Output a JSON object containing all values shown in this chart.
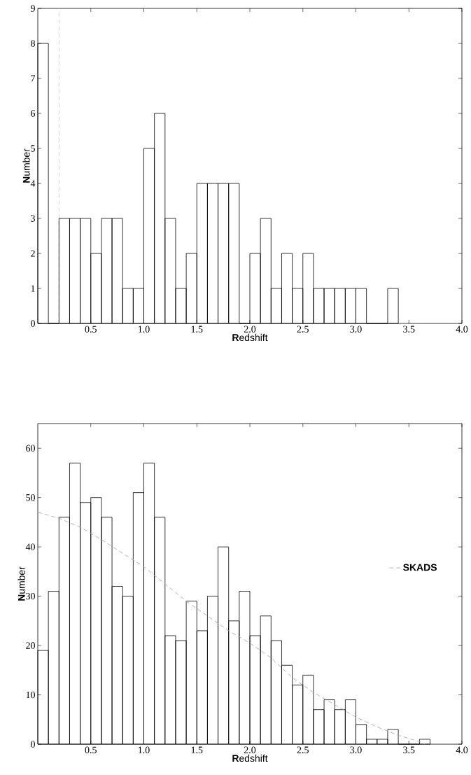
{
  "chart_data": [
    {
      "type": "histogram",
      "xlabel": "**R**edshift",
      "ylabel": "**N**umber",
      "color": "#000000",
      "bins": [
        0,
        0.1,
        0.2,
        0.3,
        0.4,
        0.5,
        0.6,
        0.7,
        0.8,
        0.9,
        1.0,
        1.1,
        1.2,
        1.3,
        1.4,
        1.5,
        1.6,
        1.7,
        1.8,
        1.9,
        2.0,
        2.1,
        2.2,
        2.3,
        2.4,
        2.5,
        2.6,
        2.7,
        2.8,
        2.9,
        3.0,
        3.1,
        3.2,
        3.3,
        3.4
      ],
      "values": [
        8,
        0,
        3,
        3,
        3,
        2,
        3,
        3,
        1,
        1,
        5,
        6,
        3,
        1,
        2,
        4,
        4,
        4,
        4,
        0,
        2,
        3,
        1,
        2,
        1,
        2,
        1,
        1,
        1,
        1,
        1,
        0,
        0,
        1
      ],
      "xlim": [
        0,
        4
      ],
      "ylim": [
        0,
        9
      ],
      "xticks": [
        {
          "value": 0.5,
          "label": "0.5"
        },
        {
          "value": 1.0,
          "label": "1.0"
        },
        {
          "value": 1.5,
          "label": "1.5"
        },
        {
          "value": 2.0,
          "label": "2.0"
        },
        {
          "value": 2.5,
          "label": "2.5"
        },
        {
          "value": 3.0,
          "label": "3.0"
        },
        {
          "value": 3.5,
          "label": "3.5"
        },
        {
          "value": 4.0,
          "label": "4.0"
        }
      ],
      "yticks": [
        0,
        1,
        2,
        3,
        4,
        5,
        6,
        7,
        8,
        9
      ],
      "ref_lines": [
        {
          "axis": "x",
          "value": 0.2,
          "color": "#c8c8c8",
          "line_style": "dashed"
        }
      ]
    },
    {
      "type": "histogram",
      "xlabel": "**R**edshift",
      "ylabel": "**N**umber",
      "legend": "right",
      "bins": [
        0,
        0.1,
        0.2,
        0.3,
        0.4,
        0.5,
        0.6,
        0.7,
        0.8,
        0.9,
        1.0,
        1.1,
        1.2,
        1.3,
        1.4,
        1.5,
        1.6,
        1.7,
        1.8,
        1.9,
        2.0,
        2.1,
        2.2,
        2.3,
        2.4,
        2.5,
        2.6,
        2.7,
        2.8,
        2.9,
        3.0,
        3.1,
        3.2,
        3.3,
        3.4,
        3.5,
        3.6,
        3.7
      ],
      "series": [
        {
          "type": "histogram",
          "color": "#000000",
          "values": [
            19,
            31,
            46,
            57,
            49,
            50,
            46,
            32,
            30,
            51,
            57,
            46,
            22,
            21,
            29,
            23,
            30,
            40,
            25,
            31,
            22,
            26,
            21,
            16,
            12,
            14,
            7,
            9,
            7,
            9,
            4,
            1,
            1,
            3,
            0,
            0,
            1
          ]
        },
        {
          "type": "line",
          "name": "SKADS",
          "color": "#aaaaaa",
          "line_style": "dashed",
          "x": [
            0,
            0.2,
            0.4,
            0.6,
            0.8,
            1.0,
            1.2,
            1.4,
            1.6,
            1.8,
            2.0,
            2.2,
            2.4,
            2.6,
            2.8,
            3.0,
            3.2,
            3.4,
            3.6,
            3.65
          ],
          "values": [
            47,
            45.8,
            44,
            41.5,
            38.7,
            36,
            32.5,
            29,
            26,
            23,
            20.5,
            17.5,
            13.5,
            10.5,
            8,
            5.5,
            3.5,
            1.8,
            0.5,
            0
          ]
        }
      ],
      "xlim": [
        0,
        4
      ],
      "ylim": [
        0,
        65
      ],
      "xticks": [
        {
          "value": 0.5,
          "label": "0.5"
        },
        {
          "value": 1.0,
          "label": "1.0"
        },
        {
          "value": 1.5,
          "label": "1.5"
        },
        {
          "value": 2.0,
          "label": "2.0"
        },
        {
          "value": 2.5,
          "label": "2.5"
        },
        {
          "value": 3.0,
          "label": "3.0"
        },
        {
          "value": 3.5,
          "label": "3.5"
        },
        {
          "value": 4.0,
          "label": "4.0"
        }
      ],
      "yticks": [
        0,
        10,
        20,
        30,
        40,
        50,
        60
      ]
    }
  ]
}
